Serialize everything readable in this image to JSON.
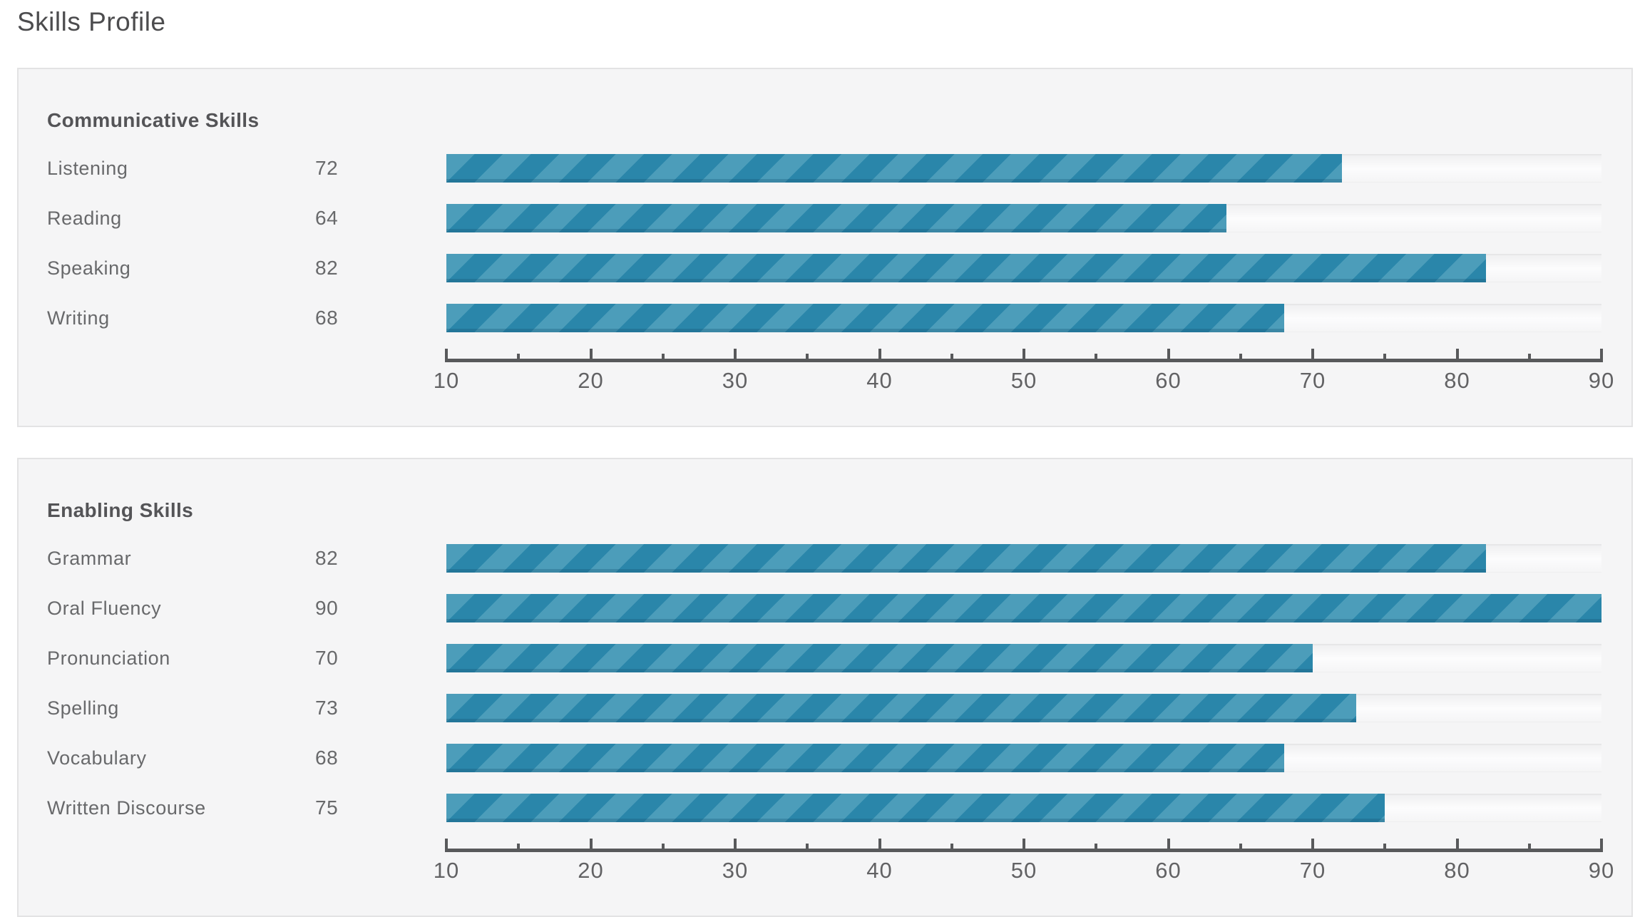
{
  "page_title": "Skills Profile",
  "colors": {
    "bar_stripe_dark": "#2A86AA",
    "bar_stripe_light": "#4C9DBA",
    "axis": "#58595B",
    "panel_background": "#F5F5F6",
    "panel_border": "#E3E3E4",
    "heading_text": "#545457",
    "label_text": "#68696B"
  },
  "axis": {
    "min": 10,
    "max": 90,
    "major_step": 10,
    "minor_step": 5,
    "labels": [
      "10",
      "20",
      "30",
      "40",
      "50",
      "60",
      "70",
      "80",
      "90"
    ]
  },
  "sections": [
    {
      "title": "Communicative Skills",
      "rows": [
        {
          "label": "Listening",
          "value": 72
        },
        {
          "label": "Reading",
          "value": 64
        },
        {
          "label": "Speaking",
          "value": 82
        },
        {
          "label": "Writing",
          "value": 68
        }
      ]
    },
    {
      "title": "Enabling Skills",
      "rows": [
        {
          "label": "Grammar",
          "value": 82
        },
        {
          "label": "Oral Fluency",
          "value": 90
        },
        {
          "label": "Pronunciation",
          "value": 70
        },
        {
          "label": "Spelling",
          "value": 73
        },
        {
          "label": "Vocabulary",
          "value": 68
        },
        {
          "label": "Written Discourse",
          "value": 75
        }
      ]
    }
  ],
  "chart_data": [
    {
      "type": "bar",
      "orientation": "horizontal",
      "title": "Communicative Skills",
      "categories": [
        "Listening",
        "Reading",
        "Speaking",
        "Writing"
      ],
      "values": [
        72,
        64,
        82,
        68
      ],
      "xlabel": "",
      "ylabel": "",
      "xlim": [
        10,
        90
      ],
      "xticks": [
        10,
        20,
        30,
        40,
        50,
        60,
        70,
        80,
        90
      ],
      "minor_xticks": [
        15,
        25,
        35,
        45,
        55,
        65,
        75,
        85
      ],
      "grid": false,
      "legend": false,
      "bar_style": "diagonal-stripes-teal"
    },
    {
      "type": "bar",
      "orientation": "horizontal",
      "title": "Enabling Skills",
      "categories": [
        "Grammar",
        "Oral Fluency",
        "Pronunciation",
        "Spelling",
        "Vocabulary",
        "Written Discourse"
      ],
      "values": [
        82,
        90,
        70,
        73,
        68,
        75
      ],
      "xlabel": "",
      "ylabel": "",
      "xlim": [
        10,
        90
      ],
      "xticks": [
        10,
        20,
        30,
        40,
        50,
        60,
        70,
        80,
        90
      ],
      "minor_xticks": [
        15,
        25,
        35,
        45,
        55,
        65,
        75,
        85
      ],
      "grid": false,
      "legend": false,
      "bar_style": "diagonal-stripes-teal"
    }
  ]
}
